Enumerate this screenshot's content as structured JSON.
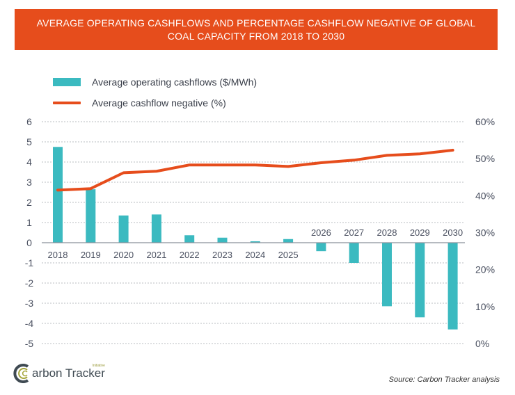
{
  "header": {
    "title_line1": "AVERAGE OPERATING CASHFLOWS AND PERCENTAGE CASHFLOW NEGATIVE OF GLOBAL",
    "title_line2": "COAL CAPACITY FROM 2018 TO 2030"
  },
  "legend": {
    "bar_label": "Average operating cashflows ($/MWh)",
    "line_label": "Average cashflow negative (%)"
  },
  "footer": {
    "source": "Source: Carbon Tracker analysis",
    "logo_text": "arbon Tracker",
    "logo_sub": "Initiative"
  },
  "colors": {
    "banner": "#e64d1c",
    "bar": "#3bbac0",
    "line": "#e64d1c",
    "axis_text": "#4a5060",
    "grid": "#b8bcc2"
  },
  "chart_data": {
    "type": "bar+line",
    "title": "AVERAGE OPERATING CASHFLOWS AND PERCENTAGE CASHFLOW NEGATIVE OF GLOBAL COAL CAPACITY FROM 2018 TO 2030",
    "categories": [
      "2018",
      "2019",
      "2020",
      "2021",
      "2022",
      "2023",
      "2024",
      "2025",
      "2026",
      "2027",
      "2028",
      "2029",
      "2030"
    ],
    "series": [
      {
        "name": "Average operating cashflows ($/MWh)",
        "type": "bar",
        "axis": "left",
        "values": [
          4.75,
          2.65,
          1.35,
          1.4,
          0.37,
          0.25,
          0.07,
          0.18,
          -0.42,
          -1.0,
          -3.15,
          -3.7,
          -4.3
        ]
      },
      {
        "name": "Average cashflow negative (%)",
        "type": "line",
        "axis": "right",
        "values": [
          41.5,
          41.9,
          46.2,
          46.6,
          48.3,
          48.3,
          48.3,
          47.9,
          48.9,
          49.6,
          50.9,
          51.3,
          52.3
        ]
      }
    ],
    "left_axis": {
      "ylim": [
        -5,
        6
      ],
      "ticks": [
        "6",
        "5",
        "4",
        "3",
        "2",
        "1",
        "0",
        "-1",
        "-2",
        "-3",
        "-4",
        "-5"
      ],
      "tick_values": [
        6,
        5,
        4,
        3,
        2,
        1,
        0,
        -1,
        -2,
        -3,
        -4,
        -5
      ]
    },
    "right_axis": {
      "ylim": [
        0,
        60
      ],
      "ticks": [
        "60%",
        "50%",
        "40%",
        "30%",
        "20%",
        "10%",
        "0%"
      ],
      "tick_values": [
        60,
        50,
        40,
        30,
        20,
        10,
        0
      ]
    },
    "grid": true,
    "legend_position": "top-left"
  }
}
